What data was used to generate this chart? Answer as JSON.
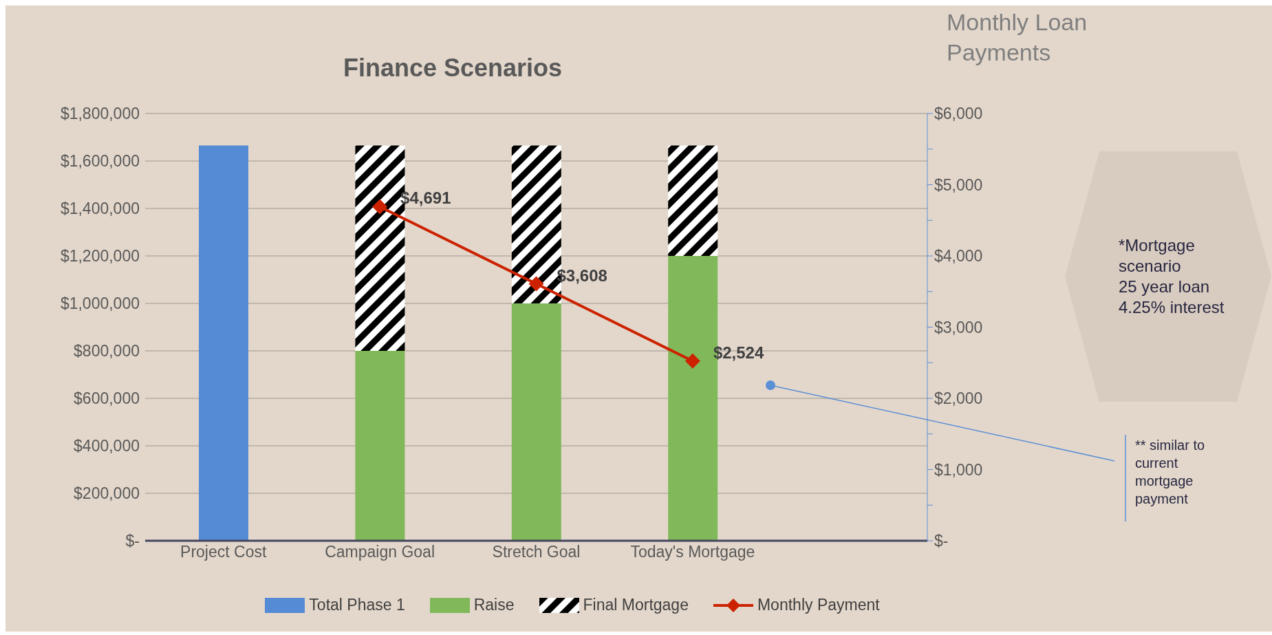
{
  "chart_data": {
    "type": "bar",
    "title": "Finance Scenarios",
    "y2label": "Monthly Loan Payments",
    "categories": [
      "Project Cost",
      "Campaign Goal",
      "Stretch Goal",
      "Today's Mortgage",
      null
    ],
    "stacked": true,
    "series": [
      {
        "name": "Total Phase 1",
        "color": "#558ad4",
        "values": [
          1665000,
          null,
          null,
          null,
          null
        ]
      },
      {
        "name": "Raise",
        "color": "#80b85a",
        "values": [
          null,
          800000,
          1000000,
          1200000,
          null
        ]
      },
      {
        "name": "Final Mortgage",
        "color": "#000000",
        "values": [
          null,
          865000,
          665000,
          465000,
          null
        ]
      },
      {
        "name": "Monthly Payment",
        "type": "line",
        "axis": "y2",
        "color": "#cc2200",
        "marker": "diamond",
        "values": [
          null,
          4691,
          3608,
          2524,
          null
        ],
        "value_labels": [
          null,
          "$4,691",
          "$3,608",
          "$2,524",
          null
        ]
      }
    ],
    "ylim": [
      0,
      1800000
    ],
    "yticks": [
      {
        "value": 0,
        "label": "$-"
      },
      {
        "value": 200000,
        "label": "$200,000"
      },
      {
        "value": 400000,
        "label": "$400,000"
      },
      {
        "value": 600000,
        "label": "$600,000"
      },
      {
        "value": 800000,
        "label": "$800,000"
      },
      {
        "value": 1000000,
        "label": "$1,000,000"
      },
      {
        "value": 1200000,
        "label": "$1,200,000"
      },
      {
        "value": 1400000,
        "label": "$1,400,000"
      },
      {
        "value": 1600000,
        "label": "$1,600,000"
      },
      {
        "value": 1800000,
        "label": "$1,800,000"
      }
    ],
    "y2lim": [
      0,
      6000
    ],
    "y2ticks": [
      {
        "value": 0,
        "label": "$-"
      },
      {
        "value": 500,
        "label": null
      },
      {
        "value": 1000,
        "label": "$1,000"
      },
      {
        "value": 1500,
        "label": null
      },
      {
        "value": 2000,
        "label": "$2,000"
      },
      {
        "value": 2500,
        "label": null
      },
      {
        "value": 3000,
        "label": "$3,000"
      },
      {
        "value": 3500,
        "label": null
      },
      {
        "value": 4000,
        "label": "$4,000"
      },
      {
        "value": 4500,
        "label": null
      },
      {
        "value": 5000,
        "label": "$5,000"
      },
      {
        "value": 5500,
        "label": null
      },
      {
        "value": 6000,
        "label": "$6,000"
      }
    ],
    "grid": "y",
    "legend": "bottom",
    "annotations": [
      "*Mortgage scenario\n25 year loan\n4.25% interest",
      "** similar to current mortgage payment"
    ]
  }
}
